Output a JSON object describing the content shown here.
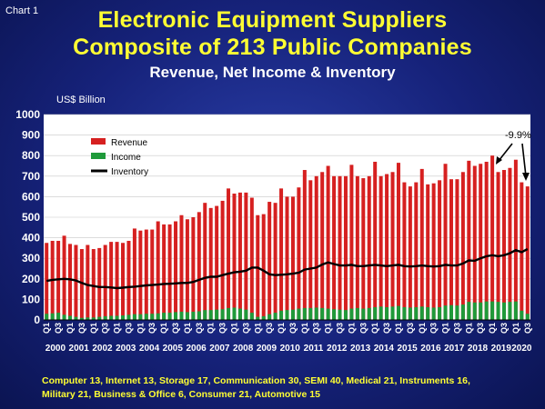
{
  "header": {
    "chart_label": "Chart 1",
    "title_line1": "Electronic Equipment Suppliers",
    "title_line2": "Composite of 213 Public Companies",
    "subtitle": "Revenue, Net Income & Inventory",
    "unit": "US$ Billion"
  },
  "footer": {
    "line1": "Computer 13, Internet 13, Storage 17, Communication 30, SEMI 40, Medical 21, Instruments 16,",
    "line2": "Military 21, Business & Office 6, Consumer 21, Automotive 15"
  },
  "colors": {
    "revenue": "#d62020",
    "income": "#1f9a3a",
    "inventory": "#000000",
    "plot_bg": "#ffffff",
    "grid": "#c8c8c8"
  },
  "chart_data": {
    "type": "bar",
    "ylim": [
      0,
      1000
    ],
    "yticks": [
      "0",
      "100",
      "200",
      "300",
      "400",
      "500",
      "600",
      "700",
      "800",
      "900",
      "1000"
    ],
    "legend_position": "top-left",
    "grid": true,
    "annotation": "-9.9%",
    "quarter_tick_labels": [
      "Q1",
      "Q3"
    ],
    "year_labels": [
      "2000",
      "2001",
      "2002",
      "2003",
      "2004",
      "2005",
      "2006",
      "2007",
      "2008",
      "2009",
      "2010",
      "2011",
      "2012",
      "2013",
      "2014",
      "2015",
      "2016",
      "2017",
      "2018",
      "2019",
      "2020"
    ],
    "series": [
      {
        "name": "Revenue",
        "kind": "bar",
        "values": [
          375,
          385,
          385,
          410,
          370,
          365,
          345,
          365,
          345,
          350,
          365,
          380,
          380,
          375,
          385,
          445,
          435,
          440,
          440,
          480,
          465,
          465,
          480,
          510,
          490,
          500,
          525,
          570,
          545,
          555,
          580,
          640,
          615,
          620,
          620,
          595,
          510,
          515,
          575,
          570,
          640,
          600,
          600,
          645,
          730,
          680,
          700,
          720,
          750,
          700,
          700,
          700,
          755,
          700,
          690,
          700,
          770,
          700,
          710,
          720,
          765,
          670,
          650,
          670,
          735,
          660,
          665,
          680,
          760,
          685,
          685,
          720,
          775,
          750,
          760,
          770,
          800,
          720,
          730,
          740,
          780,
          670,
          650
        ]
      },
      {
        "name": "Income",
        "kind": "bar",
        "values": [
          30,
          32,
          35,
          25,
          20,
          15,
          10,
          12,
          12,
          15,
          18,
          20,
          20,
          22,
          25,
          28,
          28,
          30,
          30,
          32,
          35,
          35,
          38,
          40,
          38,
          40,
          42,
          48,
          48,
          50,
          52,
          58,
          60,
          55,
          50,
          35,
          15,
          18,
          28,
          35,
          45,
          48,
          50,
          55,
          58,
          58,
          60,
          58,
          55,
          52,
          50,
          48,
          55,
          58,
          55,
          58,
          62,
          65,
          62,
          65,
          68,
          62,
          60,
          62,
          65,
          62,
          60,
          62,
          70,
          72,
          70,
          75,
          88,
          85,
          85,
          90,
          90,
          88,
          85,
          88,
          90,
          45,
          30
        ]
      },
      {
        "name": "Inventory",
        "kind": "line",
        "values": [
          190,
          195,
          198,
          200,
          198,
          192,
          180,
          170,
          165,
          160,
          160,
          158,
          155,
          157,
          160,
          162,
          165,
          168,
          170,
          172,
          175,
          176,
          178,
          180,
          180,
          185,
          195,
          205,
          210,
          210,
          218,
          225,
          232,
          235,
          240,
          255,
          255,
          240,
          222,
          218,
          220,
          222,
          225,
          230,
          245,
          250,
          255,
          270,
          280,
          272,
          265,
          265,
          268,
          262,
          262,
          265,
          268,
          265,
          262,
          265,
          268,
          262,
          260,
          262,
          265,
          262,
          260,
          262,
          268,
          265,
          265,
          275,
          290,
          288,
          300,
          310,
          315,
          310,
          315,
          325,
          340,
          330,
          345
        ]
      }
    ]
  }
}
